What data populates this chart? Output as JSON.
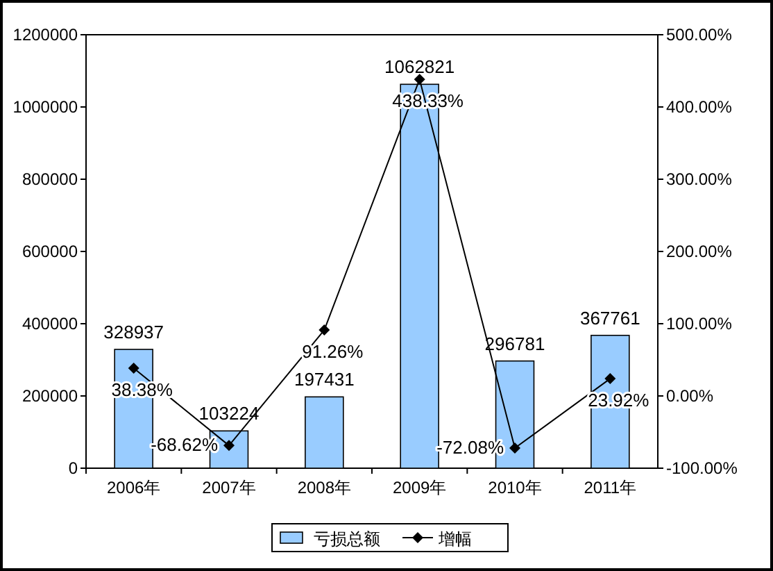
{
  "chart_data": {
    "type": "bar",
    "categories": [
      "2006年",
      "2007年",
      "2008年",
      "2009年",
      "2010年",
      "2011年"
    ],
    "series": [
      {
        "name": "亏损总额",
        "color": "#99ccff",
        "values": [
          328937,
          103224,
          197431,
          1062821,
          296781,
          367761
        ],
        "value_labels": [
          "328937",
          "103224",
          "197431",
          "1062821",
          "296781",
          "367761"
        ]
      },
      {
        "name": "增幅",
        "type": "line",
        "axis": "y2",
        "color": "#000000",
        "marker": "diamond",
        "values": [
          38.38,
          -68.62,
          91.26,
          438.33,
          -72.08,
          23.92
        ],
        "value_labels": [
          "38.38%",
          "-68.62%",
          "91.26%",
          "438.33%",
          "-72.08%",
          "23.92%"
        ]
      }
    ],
    "ylim": [
      0,
      1200000
    ],
    "yticks": [
      0,
      200000,
      400000,
      600000,
      800000,
      1000000,
      1200000
    ],
    "y2lim": [
      -100,
      500
    ],
    "y2ticks": [
      {
        "value": -100,
        "label": "-100.00%"
      },
      {
        "value": 0,
        "label": "0.00%"
      },
      {
        "value": 100,
        "label": "100.00%"
      },
      {
        "value": 200,
        "label": "200.00%"
      },
      {
        "value": 300,
        "label": "300.00%"
      },
      {
        "value": 400,
        "label": "400.00%"
      },
      {
        "value": 500,
        "label": "500.00%"
      }
    ],
    "legend": "bottom",
    "grid": false
  }
}
